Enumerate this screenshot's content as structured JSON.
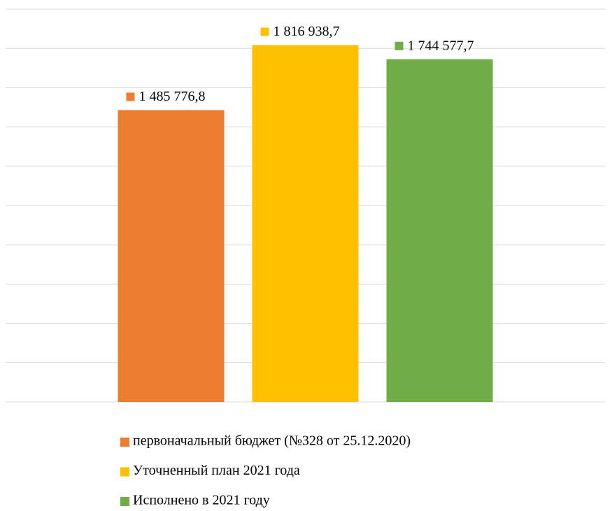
{
  "chart_data": {
    "type": "bar",
    "series": [
      {
        "name": "первоначальный бюджет (№328 от 25.12.2020)",
        "color": "#ed7d31",
        "values": [
          1485776.8
        ],
        "value_labels": [
          "1 485 776,8"
        ]
      },
      {
        "name": "Уточненный план 2021 года",
        "color": "#ffc000",
        "values": [
          1816938.7
        ],
        "value_labels": [
          "1 816 938,7"
        ]
      },
      {
        "name": "Исполнено в 2021 году",
        "color": "#70ad47",
        "values": [
          1744577.7
        ],
        "value_labels": [
          "1 744 577,7"
        ]
      }
    ],
    "ylim": [
      0,
      2000000
    ],
    "yticks": [
      0,
      200000,
      400000,
      600000,
      800000,
      1000000,
      1200000,
      1400000,
      1600000,
      1800000,
      2000000
    ],
    "grid": true,
    "legend": "bottom"
  }
}
